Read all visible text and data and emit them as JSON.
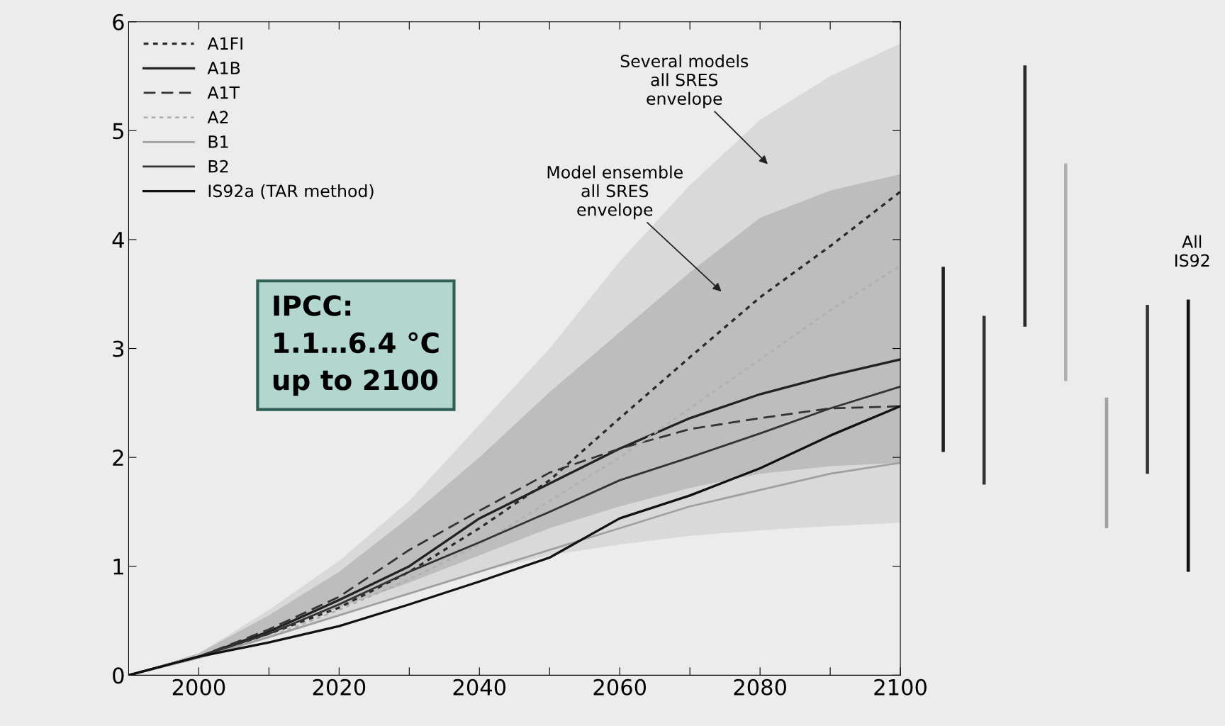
{
  "chart_data": [
    {
      "type": "line",
      "x": [
        1990,
        2000,
        2010,
        2020,
        2030,
        2040,
        2050,
        2060,
        2070,
        2080,
        2090,
        2100
      ],
      "xlim": [
        1990,
        2100
      ],
      "ylim": [
        0,
        6
      ],
      "xticks": [
        {
          "value": 2000,
          "label": "2000"
        },
        {
          "value": 2010,
          "label": null
        },
        {
          "value": 2020,
          "label": "2020"
        },
        {
          "value": 2030,
          "label": null
        },
        {
          "value": 2040,
          "label": "2040"
        },
        {
          "value": 2050,
          "label": null
        },
        {
          "value": 2060,
          "label": "2060"
        },
        {
          "value": 2070,
          "label": null
        },
        {
          "value": 2080,
          "label": "2080"
        },
        {
          "value": 2090,
          "label": null
        },
        {
          "value": 2100,
          "label": "2100"
        }
      ],
      "yticks": [
        0,
        1,
        2,
        3,
        4,
        5,
        6
      ],
      "grid": false,
      "legend": "top left",
      "series": [
        {
          "type": "area",
          "color": "#d9d9d9",
          "values": [
            null,
            null,
            null,
            null,
            null,
            null,
            null,
            null,
            null,
            null,
            null,
            null
          ],
          "lower": [
            0,
            0.15,
            0.35,
            0.55,
            0.75,
            0.95,
            1.1,
            1.2,
            1.28,
            1.33,
            1.37,
            1.4
          ],
          "upper": [
            0,
            0.2,
            0.6,
            1.05,
            1.6,
            2.3,
            3.0,
            3.8,
            4.5,
            5.1,
            5.5,
            5.8
          ]
        },
        {
          "type": "area",
          "color": "#bdbdbd",
          "values": [
            null,
            null,
            null,
            null,
            null,
            null,
            null,
            null,
            null,
            null,
            null,
            null
          ],
          "lower": [
            0,
            0.15,
            0.4,
            0.62,
            0.85,
            1.1,
            1.35,
            1.55,
            1.72,
            1.85,
            1.92,
            1.95
          ],
          "upper": [
            0,
            0.2,
            0.55,
            0.95,
            1.45,
            2.0,
            2.6,
            3.15,
            3.7,
            4.2,
            4.45,
            4.6
          ]
        },
        {
          "name": "A1FI",
          "color": "#2a2a2a",
          "line_style": "dotted",
          "values": [
            0,
            0.17,
            0.38,
            0.62,
            0.95,
            1.35,
            1.79,
            2.36,
            2.92,
            3.47,
            3.94,
            4.44
          ]
        },
        {
          "name": "A1B",
          "color": "#222222",
          "line_style": "solid",
          "values": [
            0,
            0.17,
            0.4,
            0.69,
            1.0,
            1.44,
            1.76,
            2.08,
            2.36,
            2.58,
            2.75,
            2.9
          ]
        },
        {
          "name": "A1T",
          "color": "#333333",
          "line_style": "dashed",
          "values": [
            0,
            0.17,
            0.42,
            0.72,
            1.15,
            1.51,
            1.86,
            2.08,
            2.26,
            2.36,
            2.45,
            2.47
          ]
        },
        {
          "name": "A2",
          "color": "#b0b0b0",
          "line_style": "dotted",
          "values": [
            0,
            0.16,
            0.35,
            0.6,
            0.88,
            1.2,
            1.6,
            2.0,
            2.45,
            2.9,
            3.35,
            3.76
          ]
        },
        {
          "name": "B1",
          "color": "#a0a0a0",
          "line_style": "solid",
          "values": [
            0,
            0.16,
            0.35,
            0.55,
            0.75,
            0.95,
            1.15,
            1.35,
            1.55,
            1.7,
            1.85,
            1.95
          ]
        },
        {
          "name": "B2",
          "color": "#333333",
          "line_style": "solid",
          "values": [
            0,
            0.17,
            0.38,
            0.65,
            0.95,
            1.22,
            1.5,
            1.79,
            2.0,
            2.22,
            2.45,
            2.65
          ]
        },
        {
          "name": "IS92a (TAR method)",
          "color": "#111111",
          "line_style": "solid",
          "values": [
            0,
            0.17,
            0.3,
            0.45,
            0.65,
            0.86,
            1.08,
            1.44,
            1.65,
            1.9,
            2.2,
            2.47
          ]
        }
      ],
      "annotations": [
        "Several models\nall SRES\nenvelope",
        "Model ensemble\nall SRES\nenvelope",
        "IPCC:\n1.1…6.4 °C\nup to 2100"
      ]
    },
    {
      "type": "bar",
      "categories": [
        null,
        null,
        null,
        null,
        null,
        null,
        null
      ],
      "ylim": [
        0,
        6
      ],
      "tick_labels": false,
      "base": [
        2.05,
        1.75,
        3.2,
        2.7,
        1.35,
        1.85,
        0.95
      ],
      "values": [
        1.7,
        1.55,
        2.4,
        2.0,
        1.2,
        1.55,
        2.5
      ],
      "colors": [
        "#222222",
        "#333333",
        "#2a2a2a",
        "#b0b0b0",
        "#a0a0a0",
        "#333333",
        "#111111"
      ],
      "annotations": [
        "All\nIS92"
      ]
    }
  ]
}
